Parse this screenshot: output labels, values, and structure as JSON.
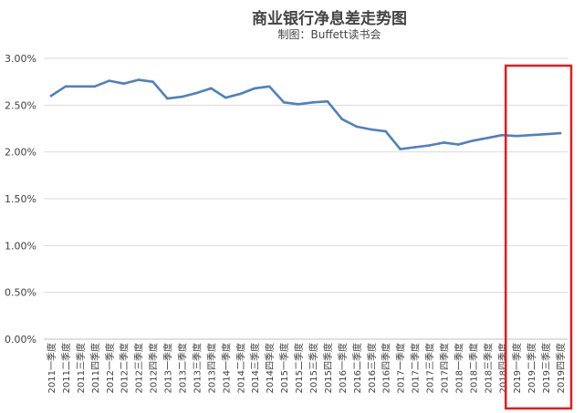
{
  "chart_data": {
    "type": "line",
    "title": "商业银行净息差走势图",
    "subtitle": "制图：Buffett读书会",
    "xlabel": "",
    "ylabel": "",
    "ylim": [
      0,
      0.03
    ],
    "y_ticks": [
      0,
      0.005,
      0.01,
      0.015,
      0.02,
      0.025,
      0.03
    ],
    "y_tick_labels": [
      "0.00%",
      "0.50%",
      "1.00%",
      "1.50%",
      "2.00%",
      "2.50%",
      "3.00%"
    ],
    "grid": true,
    "categories": [
      "2011一季度",
      "2011二季度",
      "2011三季度",
      "2011四季度",
      "2012一季度",
      "2012二季度",
      "2012三季度",
      "2012四季度",
      "2013一季度",
      "2013二季度",
      "2013三季度",
      "2013四季度",
      "2014一季度",
      "2014二季度",
      "2014三季度",
      "2014四季度",
      "2015一季度",
      "2015二季度",
      "2015三季度",
      "2015四季度",
      "2016一季度",
      "2016二季度",
      "2016三季度",
      "2016四季度",
      "2017一季度",
      "2017二季度",
      "2017三季度",
      "2017四季度",
      "2018一季度",
      "2018二季度",
      "2018三季度",
      "2018四季度",
      "2019一季度",
      "2019二季度",
      "2019三季度",
      "2019四季度"
    ],
    "series": [
      {
        "values": [
          0.026,
          0.027,
          0.027,
          0.027,
          0.0276,
          0.0273,
          0.0277,
          0.0275,
          0.0257,
          0.0259,
          0.0263,
          0.0268,
          0.0258,
          0.0262,
          0.0268,
          0.027,
          0.0253,
          0.0251,
          0.0253,
          0.0254,
          0.0235,
          0.0227,
          0.0224,
          0.0222,
          0.0203,
          0.0205,
          0.0207,
          0.021,
          0.0208,
          0.0212,
          0.0215,
          0.0218,
          0.0217,
          0.0218,
          0.0219,
          0.022
        ]
      }
    ],
    "highlight": {
      "from_index": 32,
      "to_index": 35,
      "color": "#e8191c"
    },
    "colors": {
      "line": "#4f81bd",
      "grid": "#d9d9d9",
      "text": "#404040"
    }
  }
}
